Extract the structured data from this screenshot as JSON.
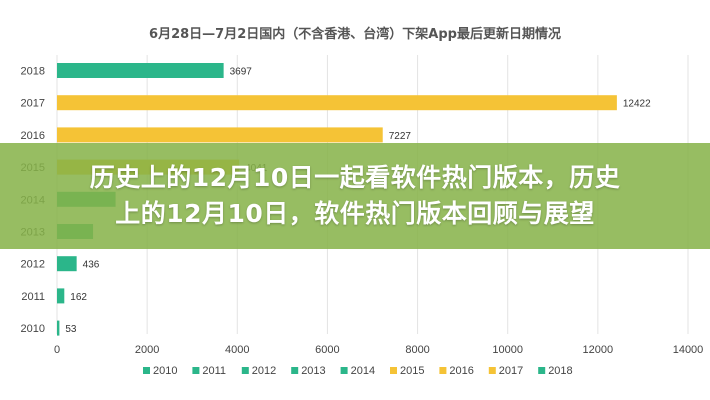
{
  "chart_data": {
    "type": "bar",
    "orientation": "horizontal",
    "title": "6月28日—7月2日国内（不含香港、台湾）下架App最后更新日期情况",
    "categories": [
      "2018",
      "2017",
      "2016",
      "2015",
      "2014",
      "2013",
      "2012",
      "2011",
      "2010"
    ],
    "values": [
      3697,
      12422,
      7227,
      4041,
      1300,
      800,
      436,
      162,
      53
    ],
    "data_labels": [
      "3697",
      "12422",
      "7227",
      "4041",
      "",
      "",
      "436",
      "162",
      "53"
    ],
    "xlim": [
      0,
      14000
    ],
    "x_ticks": [
      "0",
      "2000",
      "4000",
      "6000",
      "8000",
      "10000",
      "12000",
      "14000"
    ],
    "grid": "vertical",
    "legend_position": "bottom",
    "legend": [
      {
        "label": "2010",
        "color": "#2bb68a"
      },
      {
        "label": "2011",
        "color": "#2bb68a"
      },
      {
        "label": "2012",
        "color": "#2bb68a"
      },
      {
        "label": "2013",
        "color": "#2bb68a"
      },
      {
        "label": "2014",
        "color": "#2bb68a"
      },
      {
        "label": "2015",
        "color": "#f5c336"
      },
      {
        "label": "2016",
        "color": "#f5c336"
      },
      {
        "label": "2017",
        "color": "#f5c336"
      },
      {
        "label": "2018",
        "color": "#2bb68a"
      }
    ],
    "bar_colors": [
      "#2bb68a",
      "#f5c336",
      "#f5c336",
      "#f5c336",
      "#2bb68a",
      "#2bb68a",
      "#2bb68a",
      "#2bb68a",
      "#2bb68a"
    ]
  },
  "overlay": {
    "line1": "历史上的12月10日一起看软件热门版本，历史",
    "line2": "上的12月10日，软件热门版本回顾与展望"
  },
  "colors": {
    "teal": "#2bb68a",
    "yellow": "#f5c336",
    "banner": "#86b248"
  }
}
